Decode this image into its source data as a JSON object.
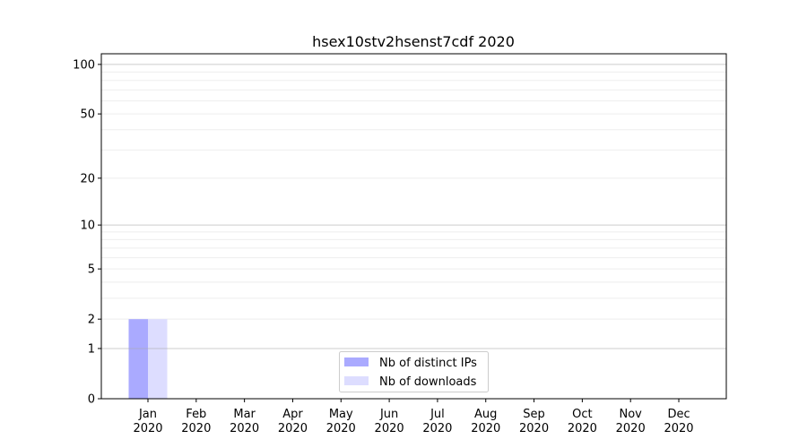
{
  "chart_data": {
    "type": "bar",
    "title": "hsex10stv2hsenst7cdf 2020",
    "xlabel": "",
    "ylabel": "",
    "yscale": "symlog",
    "ylim": [
      0,
      116
    ],
    "yticks": [
      0,
      1,
      2,
      5,
      10,
      20,
      50,
      100
    ],
    "ytick_labels": [
      "0",
      "1",
      "2",
      "5",
      "10",
      "20",
      "50",
      "100"
    ],
    "grid": true,
    "categories": [
      "Jan\n2020",
      "Feb\n2020",
      "Mar\n2020",
      "Apr\n2020",
      "May\n2020",
      "Jun\n2020",
      "Jul\n2020",
      "Aug\n2020",
      "Sep\n2020",
      "Oct\n2020",
      "Nov\n2020",
      "Dec\n2020"
    ],
    "series": [
      {
        "name": "Nb of distinct IPs",
        "color": "#aaaaff",
        "values": [
          2,
          0,
          0,
          0,
          0,
          0,
          0,
          0,
          0,
          0,
          0,
          0
        ]
      },
      {
        "name": "Nb of downloads",
        "color": "#ddddff",
        "values": [
          2,
          0,
          0,
          0,
          0,
          0,
          0,
          0,
          0,
          0,
          0,
          0
        ]
      }
    ],
    "legend_placement": "bottom-center"
  }
}
